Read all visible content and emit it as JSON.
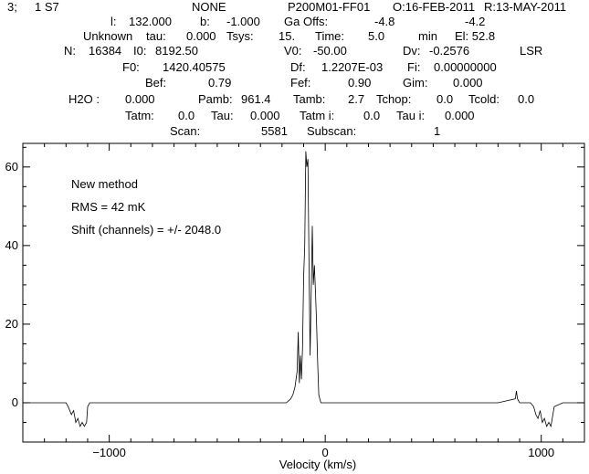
{
  "header": {
    "line1": [
      "3;",
      "1 S7",
      "NONE",
      "P200M01-FF01",
      "O:16-FEB-2011",
      "R:13-MAY-2011"
    ],
    "line2": [
      "l:",
      "132.000",
      "b:",
      "-1.000",
      "Ga Offs:",
      "-4.8",
      "-4.2"
    ],
    "line3": [
      "Unknown",
      "tau:",
      "0.000",
      "Tsys:",
      "15.",
      "Time:",
      "5.0",
      "min",
      "El: 52.8"
    ],
    "line4": [
      "N:",
      "16384",
      "I0:",
      "8192.50",
      "V0:",
      "-50.00",
      "Dv:",
      "-0.2576",
      "LSR"
    ],
    "line5": [
      "F0:",
      "1420.40575",
      "Df:",
      "1.2207E-03",
      "Fi:",
      "0.00000000"
    ],
    "line6": [
      "Bef:",
      "0.79",
      "Fef:",
      "0.90",
      "Gim:",
      "0.000"
    ],
    "line7": [
      "H2O :",
      "0.000",
      "Pamb:",
      "961.4",
      "Tamb:",
      "2.7",
      "Tchop:",
      "0.0",
      "Tcold:",
      "0.0"
    ],
    "line8": [
      "Tatm:",
      "0.0",
      "Tau:",
      "0.000",
      "Tatm i:",
      "0.0",
      "Tau i:",
      "0.000"
    ],
    "line9": [
      "Scan:",
      "5581",
      "Subscan:",
      "1"
    ]
  },
  "chart_data": {
    "type": "line",
    "xlabel": "Velocity (km/s)",
    "ylabel": "",
    "xlim": [
      -1400,
      1200
    ],
    "ylim": [
      -10,
      66
    ],
    "xticks_major": [
      -1000,
      0,
      1000
    ],
    "yticks_major": [
      0,
      20,
      40,
      60
    ],
    "annotations": [
      "New method",
      "RMS = 42 mK",
      "Shift (channels) = +/- 2048.0"
    ],
    "series": [
      {
        "x": [
          -1400,
          -1200,
          -1190,
          -1175,
          -1165,
          -1155,
          -1145,
          -1135,
          -1125,
          -1115,
          -1105,
          -1100,
          -1090,
          -1050,
          -800,
          -600,
          -400,
          -200,
          -180,
          -160,
          -150,
          -140,
          -130,
          -125,
          -120,
          -115,
          -110,
          -105,
          -100,
          -95,
          -90,
          -85,
          -80,
          -75,
          -70,
          -65,
          -60,
          -55,
          -50,
          -45,
          -40,
          -35,
          -30,
          -25,
          -20,
          -15,
          -10,
          -5,
          0,
          50,
          200,
          400,
          600,
          800,
          880,
          885,
          890,
          900,
          950,
          965,
          975,
          985,
          995,
          1005,
          1015,
          1025,
          1035,
          1045,
          1060,
          1100,
          1200
        ],
        "y": [
          0,
          0,
          -1,
          -3,
          -2,
          -5,
          -4,
          -6,
          -5,
          -6,
          -5,
          -1,
          0,
          0,
          0,
          0,
          0,
          0,
          0,
          1,
          2,
          4,
          8,
          18,
          5,
          12,
          6,
          14,
          32,
          40,
          64,
          60,
          62,
          35,
          12,
          28,
          45,
          30,
          35,
          28,
          20,
          10,
          2,
          1,
          0,
          0,
          0,
          0,
          0,
          0,
          0,
          0,
          0,
          0,
          1,
          3,
          1,
          0,
          0,
          -1,
          -3,
          -4,
          -2,
          -5,
          -4,
          -6,
          -5,
          -6,
          -1,
          0,
          0
        ]
      }
    ]
  }
}
